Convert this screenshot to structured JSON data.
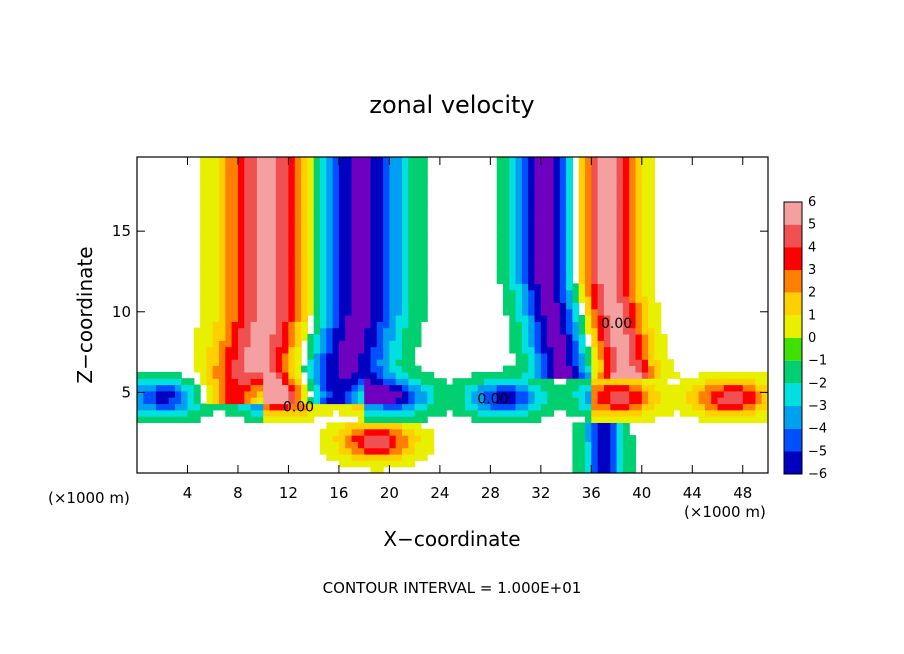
{
  "chart_data": {
    "type": "heatmap",
    "title": "zonal velocity",
    "xlabel": "X−coordinate",
    "ylabel": "Z−coordinate",
    "x_unit": "(×1000 m)",
    "y_unit": "(×1000 m)",
    "xlim": [
      0,
      50
    ],
    "ylim": [
      0,
      19.6
    ],
    "x_ticks": [
      4,
      8,
      12,
      16,
      20,
      24,
      28,
      32,
      36,
      40,
      44,
      48
    ],
    "y_ticks": [
      5,
      10,
      15
    ],
    "x_tick_labels": [
      "4",
      "8",
      "12",
      "16",
      "20",
      "24",
      "28",
      "32",
      "36",
      "40",
      "44",
      "48"
    ],
    "y_tick_labels": [
      "5",
      "10",
      "15"
    ],
    "colorbar": {
      "levels": [
        6,
        5,
        4,
        3,
        2,
        1,
        0,
        -1,
        -2,
        -3,
        -4,
        -5,
        -6
      ],
      "labels": [
        "6",
        "5",
        "4",
        "3",
        "2",
        "1",
        "0",
        "−1",
        "−2",
        "−3",
        "−4",
        "−5",
        "−6"
      ],
      "colors": [
        "#f4a0a0",
        "#f05050",
        "#ff0000",
        "#ff8000",
        "#ffd000",
        "#e8f000",
        "#40e000",
        "#00d070",
        "#00e0e0",
        "#00a0f0",
        "#0050ff",
        "#0000c0",
        "#7000c0"
      ]
    },
    "contour_labels": [
      {
        "text": "0.00",
        "x": 12.8,
        "z": 3.8
      },
      {
        "text": "0.00",
        "x": 28.2,
        "z": 4.3
      },
      {
        "text": "0.00",
        "x": 38.0,
        "z": 9.0
      }
    ],
    "footer": "CONTOUR INTERVAL = 1.000E+01",
    "features": {
      "left_band_x_at_top": 14.0,
      "right_band_x_at_top": 34.5,
      "base_layer_z": 5.2
    }
  }
}
